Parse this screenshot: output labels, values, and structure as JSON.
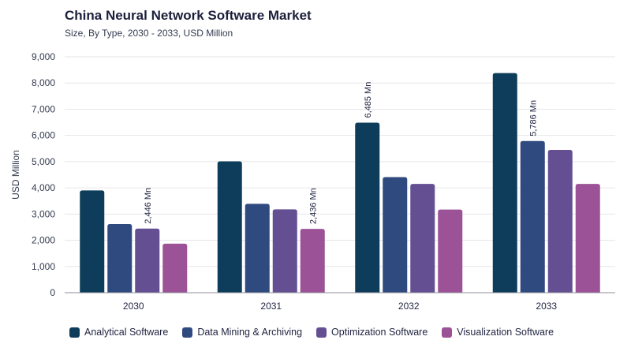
{
  "chart_data": {
    "type": "bar",
    "title": "China Neural Network Software Market",
    "subtitle": "Size, By Type, 2030 - 2033, USD Million",
    "xlabel": "",
    "ylabel": "USD Million",
    "ylim": [
      0,
      9000
    ],
    "yticks": [
      0,
      1000,
      2000,
      3000,
      4000,
      5000,
      6000,
      7000,
      8000,
      9000
    ],
    "ytick_labels": [
      "0",
      "1,000",
      "2,000",
      "3,000",
      "4,000",
      "5,000",
      "6,000",
      "7,000",
      "8,000",
      "9,000"
    ],
    "grid": true,
    "legend_position": "bottom",
    "categories": [
      "2030",
      "2031",
      "2032",
      "2033"
    ],
    "series": [
      {
        "name": "Analytical Software",
        "color": "#0d3d5a",
        "values": [
          3900,
          5010,
          6485,
          8380
        ]
      },
      {
        "name": "Data Mining & Archiving",
        "color": "#2f4a7e",
        "values": [
          2620,
          3390,
          4410,
          5786
        ]
      },
      {
        "name": "Optimization Software",
        "color": "#654f93",
        "values": [
          2446,
          3180,
          4150,
          5450
        ]
      },
      {
        "name": "Visualization Software",
        "color": "#9c5296",
        "values": [
          1870,
          2436,
          3170,
          4150
        ]
      }
    ],
    "annotations": [
      {
        "category": "2030",
        "series": "Optimization Software",
        "text": "2,446 Mn"
      },
      {
        "category": "2031",
        "series": "Visualization Software",
        "text": "2,436 Mn"
      },
      {
        "category": "2032",
        "series": "Analytical Software",
        "text": "6,485 Mn"
      },
      {
        "category": "2033",
        "series": "Data Mining & Archiving",
        "text": "5,786 Mn"
      }
    ]
  }
}
